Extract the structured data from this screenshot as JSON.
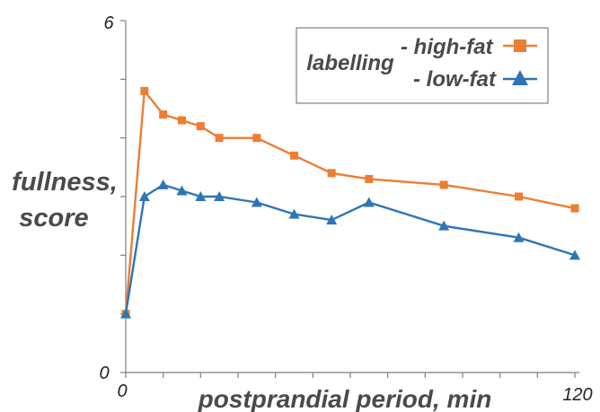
{
  "chart_data": {
    "type": "line",
    "xlabel": "postprandial period, min",
    "ylabel": [
      "fullness,",
      "score"
    ],
    "xlim": [
      0,
      120
    ],
    "ylim": [
      0,
      6
    ],
    "x_tick_labels": [
      "0",
      "120"
    ],
    "y_tick_labels": [
      "0",
      "6"
    ],
    "legend": {
      "title": "labelling",
      "placement": "top-right",
      "entries": [
        "- high-fat",
        "- low-fat"
      ]
    },
    "series": [
      {
        "name": "high-fat",
        "color": "#ED7D31",
        "marker": "square",
        "x": [
          0,
          5,
          10,
          15,
          20,
          25,
          35,
          45,
          55,
          65,
          85,
          105,
          120
        ],
        "y": [
          1.0,
          4.8,
          4.4,
          4.3,
          4.2,
          4.0,
          4.0,
          3.7,
          3.4,
          3.3,
          3.2,
          3.0,
          2.8
        ]
      },
      {
        "name": "low-fat",
        "color": "#2E75B6",
        "marker": "triangle",
        "x": [
          0,
          5,
          10,
          15,
          20,
          25,
          35,
          45,
          55,
          65,
          85,
          105,
          120
        ],
        "y": [
          1.0,
          3.0,
          3.2,
          3.1,
          3.0,
          3.0,
          2.9,
          2.7,
          2.6,
          2.9,
          2.5,
          2.3,
          2.0
        ]
      }
    ]
  }
}
